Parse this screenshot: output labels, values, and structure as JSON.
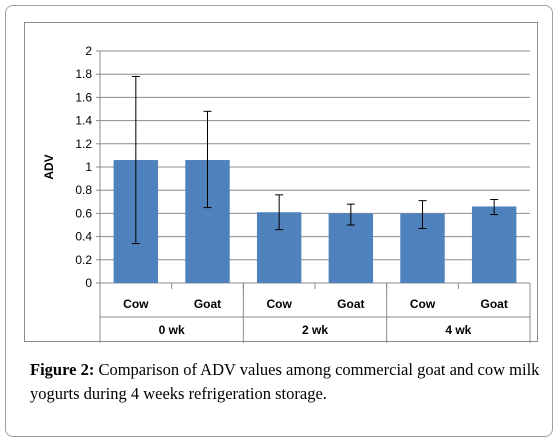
{
  "figure": {
    "caption_label": "Figure 2:",
    "caption_text": " Comparison of ADV values among commercial goat and cow milk yogurts during 4 weeks refrigeration storage."
  },
  "chart_data": {
    "type": "bar",
    "ylabel": "ADV",
    "ylim": [
      0,
      2
    ],
    "yticks": [
      "0",
      "0.2",
      "0.4",
      "0.6",
      "0.8",
      "1",
      "1.2",
      "1.4",
      "1.6",
      "1.8",
      "2"
    ],
    "grid": true,
    "groups": [
      {
        "label": "0 wk",
        "bars": [
          {
            "category": "Cow",
            "value": 1.06,
            "error_low": 0.34,
            "error_high": 1.78
          },
          {
            "category": "Goat",
            "value": 1.06,
            "error_low": 0.65,
            "error_high": 1.48
          }
        ]
      },
      {
        "label": "2 wk",
        "bars": [
          {
            "category": "Cow",
            "value": 0.61,
            "error_low": 0.46,
            "error_high": 0.76
          },
          {
            "category": "Goat",
            "value": 0.6,
            "error_low": 0.5,
            "error_high": 0.68
          }
        ]
      },
      {
        "label": "4 wk",
        "bars": [
          {
            "category": "Cow",
            "value": 0.6,
            "error_low": 0.47,
            "error_high": 0.71
          },
          {
            "category": "Goat",
            "value": 0.66,
            "error_low": 0.59,
            "error_high": 0.72
          }
        ]
      }
    ],
    "colors": {
      "bar": "#4f81bd",
      "bar_edge": "#3b6aa0",
      "grid": "#8c8c8c",
      "axis": "#8c8c8c",
      "error": "#000000"
    }
  }
}
